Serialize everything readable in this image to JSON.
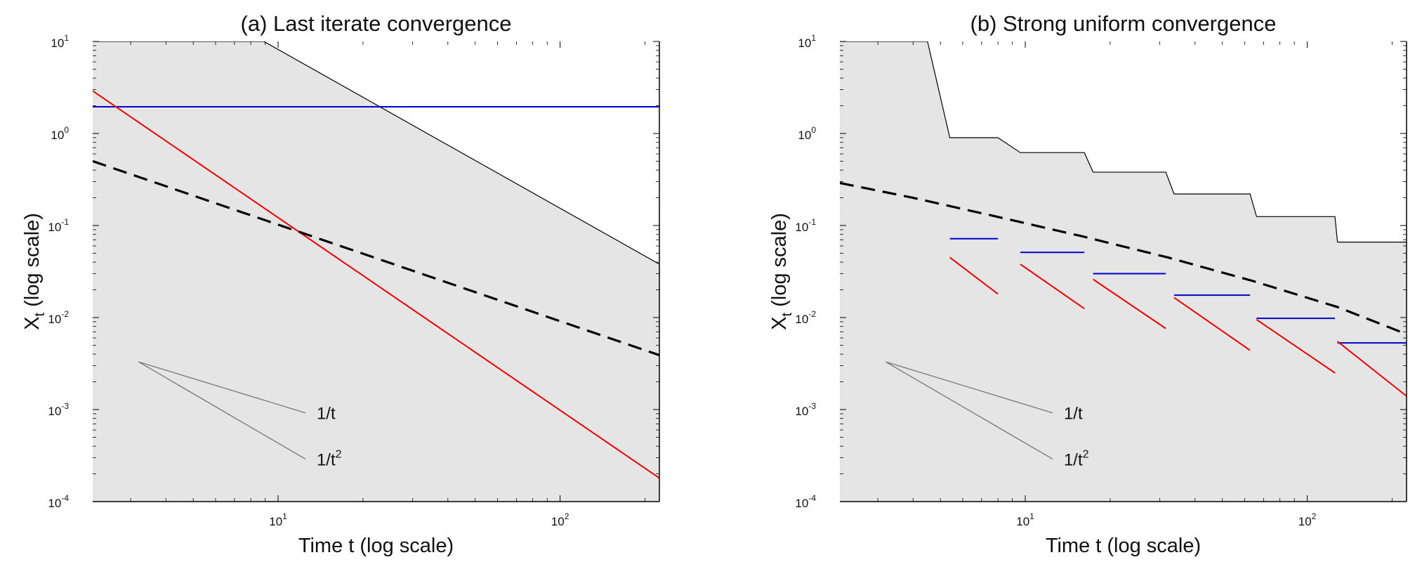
{
  "chart_data": [
    {
      "type": "line",
      "title": "(a) Last iterate convergence",
      "xlabel": "Time t (log scale)",
      "ylabel": "X",
      "ylabel_sub": "t",
      "ylabel_suffix": "(log scale)",
      "xscale": "log",
      "yscale": "log",
      "xlim": [
        2.2,
        225
      ],
      "ylim": [
        0.0001,
        10
      ],
      "xticks": [
        {
          "base": "10",
          "exp": "1",
          "value": 10
        },
        {
          "base": "10",
          "exp": "2",
          "value": 100
        }
      ],
      "yticks": [
        {
          "base": "10",
          "exp": "1",
          "value": 10
        },
        {
          "base": "10",
          "exp": "0",
          "value": 1
        },
        {
          "base": "10",
          "exp": "-1",
          "value": 0.1
        },
        {
          "base": "10",
          "exp": "-2",
          "value": 0.01
        },
        {
          "base": "10",
          "exp": "-3",
          "value": 0.001
        },
        {
          "base": "10",
          "exp": "-4",
          "value": 0.0001
        }
      ],
      "shaded_region": {
        "color": "#e5e5e5",
        "description": "area below black upper boundary"
      },
      "series": [
        {
          "name": "upper-boundary",
          "color": "#000000",
          "style": "thin",
          "x": [
            2.2,
            8.9,
            225
          ],
          "y": [
            10,
            10,
            0.038
          ]
        },
        {
          "name": "blue-line",
          "color": "#0000cc",
          "style": "solid",
          "x": [
            2.2,
            225
          ],
          "y": [
            1.95,
            1.95
          ]
        },
        {
          "name": "red-line",
          "color": "#ee0000",
          "style": "solid",
          "x": [
            2.2,
            225
          ],
          "y": [
            2.9,
            0.00018
          ]
        },
        {
          "name": "dashed-reference",
          "color": "#000000",
          "style": "dashed",
          "x": [
            2.2,
            225
          ],
          "y": [
            0.5,
            0.0039
          ]
        }
      ],
      "slope_guides": [
        {
          "label": "1/t",
          "label_base": "1/t",
          "label_sup": "",
          "x": [
            3.2,
            12.5
          ],
          "y": [
            0.0033,
            0.00092
          ]
        },
        {
          "label": "1/t²",
          "label_base": "1/t",
          "label_sup": "2",
          "x": [
            3.2,
            12.5
          ],
          "y": [
            0.0033,
            0.00029
          ]
        }
      ]
    },
    {
      "type": "line",
      "title": "(b) Strong uniform convergence",
      "xlabel": "Time t (log scale)",
      "ylabel": "X",
      "ylabel_sub": "t",
      "ylabel_suffix": "(log scale)",
      "xscale": "log",
      "yscale": "log",
      "xlim": [
        2.2,
        225
      ],
      "ylim": [
        0.0001,
        10
      ],
      "xticks": [
        {
          "base": "10",
          "exp": "1",
          "value": 10
        },
        {
          "base": "10",
          "exp": "2",
          "value": 100
        }
      ],
      "yticks": [
        {
          "base": "10",
          "exp": "1",
          "value": 10
        },
        {
          "base": "10",
          "exp": "0",
          "value": 1
        },
        {
          "base": "10",
          "exp": "-1",
          "value": 0.1
        },
        {
          "base": "10",
          "exp": "-2",
          "value": 0.01
        },
        {
          "base": "10",
          "exp": "-3",
          "value": 0.001
        },
        {
          "base": "10",
          "exp": "-4",
          "value": 0.0001
        }
      ],
      "shaded_region": {
        "color": "#e5e5e5",
        "description": "area below black staircase upper boundary"
      },
      "series": [
        {
          "name": "upper-boundary",
          "color": "#000000",
          "style": "thin",
          "x": [
            2.2,
            4.5,
            5.4,
            8.0,
            9.6,
            16.2,
            17.4,
            31.5,
            33.7,
            62.7,
            66.1,
            125.4,
            128.0,
            225
          ],
          "y": [
            10,
            10,
            0.9,
            0.9,
            0.62,
            0.62,
            0.38,
            0.38,
            0.22,
            0.22,
            0.125,
            0.125,
            0.066,
            0.066
          ]
        },
        {
          "name": "dashed-reference",
          "color": "#000000",
          "style": "dashed",
          "x": [
            2.2,
            4,
            8,
            16,
            32,
            64,
            128,
            225
          ],
          "y": [
            0.29,
            0.2,
            0.124,
            0.076,
            0.045,
            0.025,
            0.013,
            0.0066
          ]
        },
        {
          "name": "blue-segments",
          "color": "#0000cc",
          "style": "segments",
          "segments": [
            [
              5.4,
              8.0,
              0.072
            ],
            [
              9.6,
              16.2,
              0.051
            ],
            [
              17.4,
              31.5,
              0.03
            ],
            [
              33.7,
              62.7,
              0.0175
            ],
            [
              66.1,
              125.4,
              0.0098
            ],
            [
              128.0,
              225,
              0.0053
            ]
          ]
        },
        {
          "name": "red-segments",
          "color": "#ee0000",
          "style": "segments",
          "segments": [
            [
              5.4,
              8.0,
              0.045,
              0.018
            ],
            [
              9.6,
              16.2,
              0.038,
              0.0125
            ],
            [
              17.4,
              31.5,
              0.026,
              0.0076
            ],
            [
              33.7,
              62.7,
              0.0165,
              0.0044
            ],
            [
              66.1,
              125.4,
              0.0095,
              0.0025
            ],
            [
              128.0,
              225,
              0.0055,
              0.0014
            ]
          ]
        }
      ],
      "slope_guides": [
        {
          "label": "1/t",
          "label_base": "1/t",
          "label_sup": "",
          "x": [
            3.2,
            12.5
          ],
          "y": [
            0.0033,
            0.00092
          ]
        },
        {
          "label": "1/t²",
          "label_base": "1/t",
          "label_sup": "2",
          "x": [
            3.2,
            12.5
          ],
          "y": [
            0.0033,
            0.00029
          ]
        }
      ]
    }
  ]
}
